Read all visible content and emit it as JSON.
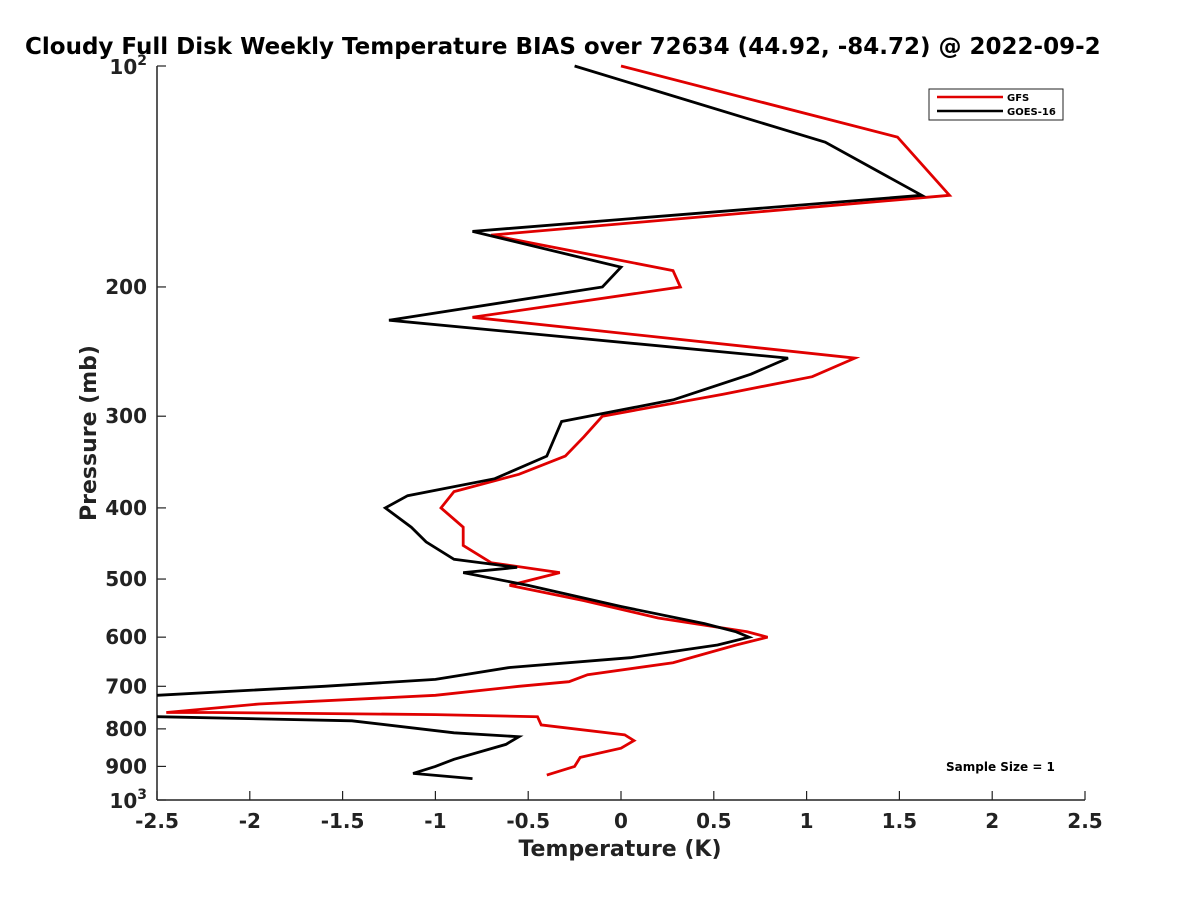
{
  "chart_data": {
    "type": "line",
    "title": "Cloudy Full Disk Weekly Temperature BIAS over 72634 (44.92, -84.72) @ 2022-09-2",
    "xlabel": "Temperature (K)",
    "ylabel": "Pressure (mb)",
    "xlim": [
      -2.5,
      2.5
    ],
    "ylim": [
      100,
      1000
    ],
    "yscale": "log",
    "y_inverted": true,
    "grid": false,
    "legend_position": "top-right",
    "x_ticks": [
      -2.5,
      -2,
      -1.5,
      -1,
      -0.5,
      0,
      0.5,
      1,
      1.5,
      2,
      2.5
    ],
    "x_tick_labels": [
      "-2.5",
      "-2",
      "-1.5",
      "-1",
      "-0.5",
      "0",
      "0.5",
      "1",
      "1.5",
      "2",
      "2.5"
    ],
    "y_ticks": [
      200,
      300,
      400,
      500,
      600,
      700,
      800,
      900
    ],
    "y_tick_labels": [
      "200",
      "300",
      "400",
      "500",
      "600",
      "700",
      "800",
      "900"
    ],
    "y_tick_major_base": "10",
    "y_tick_top_exp": "2",
    "y_tick_bottom_exp": "3",
    "annotation": "Sample Size = 1",
    "series": [
      {
        "name": "GFS",
        "color": "#e00000",
        "points": [
          [
            0.0,
            100
          ],
          [
            1.49,
            125
          ],
          [
            1.77,
            150
          ],
          [
            -0.7,
            170
          ],
          [
            0.28,
            190
          ],
          [
            0.32,
            200
          ],
          [
            -0.8,
            220
          ],
          [
            1.26,
            250
          ],
          [
            1.03,
            265
          ],
          [
            0.55,
            280
          ],
          [
            -0.1,
            300
          ],
          [
            -0.2,
            320
          ],
          [
            -0.3,
            340
          ],
          [
            -0.55,
            360
          ],
          [
            -0.9,
            380
          ],
          [
            -0.97,
            400
          ],
          [
            -0.85,
            425
          ],
          [
            -0.85,
            450
          ],
          [
            -0.7,
            475
          ],
          [
            -0.33,
            490
          ],
          [
            -0.6,
            510
          ],
          [
            -0.2,
            535
          ],
          [
            0.2,
            565
          ],
          [
            0.68,
            590
          ],
          [
            0.79,
            600
          ],
          [
            0.62,
            615
          ],
          [
            0.28,
            650
          ],
          [
            -0.18,
            675
          ],
          [
            -0.28,
            690
          ],
          [
            -0.55,
            700
          ],
          [
            -1.0,
            720
          ],
          [
            -1.95,
            740
          ],
          [
            -2.45,
            760
          ],
          [
            -2.2,
            760
          ],
          [
            -1.0,
            765
          ],
          [
            -0.45,
            770
          ],
          [
            -0.43,
            790
          ],
          [
            0.02,
            815
          ],
          [
            0.07,
            830
          ],
          [
            0.0,
            850
          ],
          [
            -0.22,
            875
          ],
          [
            -0.25,
            900
          ],
          [
            -0.4,
            925
          ]
        ]
      },
      {
        "name": "GOES-16",
        "color": "#000000",
        "points": [
          [
            -0.25,
            100
          ],
          [
            1.1,
            127
          ],
          [
            1.62,
            150
          ],
          [
            -0.8,
            168
          ],
          [
            0.0,
            188
          ],
          [
            -0.1,
            200
          ],
          [
            -1.25,
            222
          ],
          [
            0.9,
            250
          ],
          [
            0.7,
            263
          ],
          [
            0.28,
            285
          ],
          [
            -0.32,
            305
          ],
          [
            -0.4,
            340
          ],
          [
            -0.68,
            365
          ],
          [
            -1.15,
            385
          ],
          [
            -1.27,
            400
          ],
          [
            -1.13,
            425
          ],
          [
            -1.05,
            445
          ],
          [
            -0.9,
            470
          ],
          [
            -0.56,
            482
          ],
          [
            -0.85,
            490
          ],
          [
            -0.5,
            510
          ],
          [
            0.0,
            545
          ],
          [
            0.45,
            575
          ],
          [
            0.62,
            590
          ],
          [
            0.69,
            600
          ],
          [
            0.52,
            615
          ],
          [
            0.05,
            640
          ],
          [
            -0.6,
            660
          ],
          [
            -1.0,
            685
          ],
          [
            -1.6,
            700
          ],
          [
            -2.5,
            720
          ]
        ]
      },
      {
        "name": "GOES-16",
        "color": "#000000",
        "points": [
          [
            -2.5,
            770
          ],
          [
            -1.45,
            780
          ],
          [
            -0.9,
            810
          ],
          [
            -0.55,
            820
          ],
          [
            -0.62,
            840
          ],
          [
            -0.9,
            880
          ],
          [
            -1.0,
            900
          ],
          [
            -1.12,
            920
          ],
          [
            -0.8,
            935
          ]
        ]
      }
    ]
  },
  "legend": {
    "entries": [
      {
        "label": "GFS",
        "color": "#e00000"
      },
      {
        "label": "GOES-16",
        "color": "#000000"
      }
    ]
  }
}
